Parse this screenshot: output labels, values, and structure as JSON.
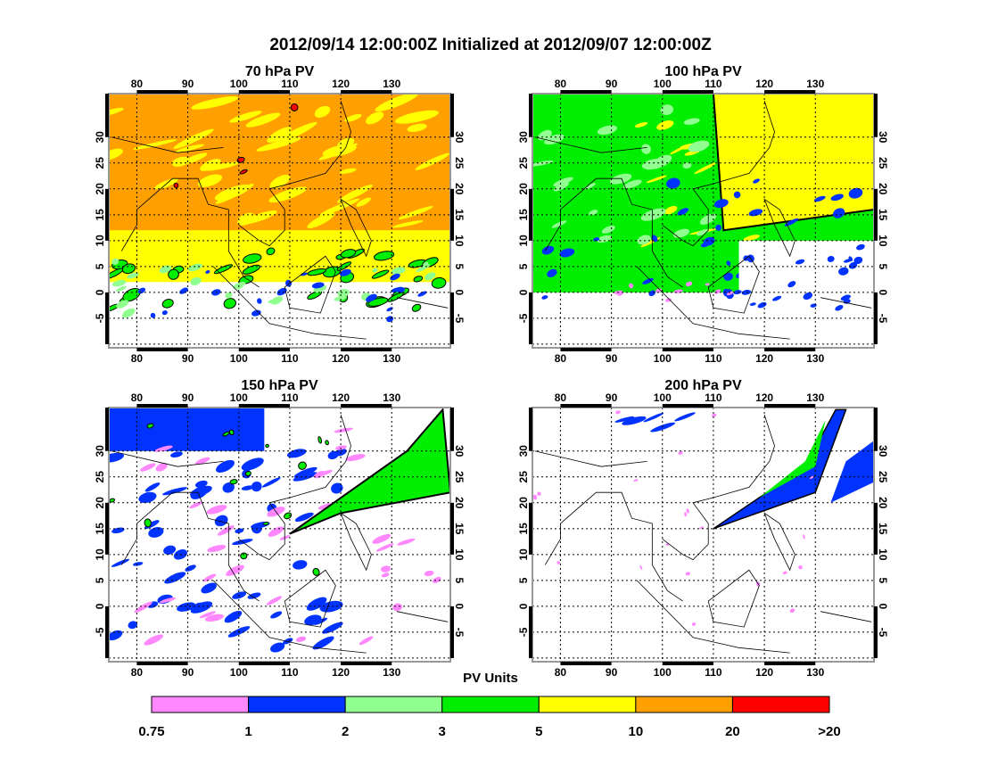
{
  "title": "2012/09/14 12:00:00Z Initialized at 2012/09/07 12:00:00Z",
  "chart_data": {
    "type": "heatmap",
    "panels": [
      {
        "title": "70 hPa PV",
        "dominant": [
          "orange",
          "yellow"
        ]
      },
      {
        "title": "100 hPa PV",
        "dominant": [
          "green",
          "yellow"
        ]
      },
      {
        "title": "150 hPa PV",
        "dominant": [
          "blue",
          "white"
        ]
      },
      {
        "title": "200 hPa PV",
        "dominant": [
          "white",
          "blue"
        ]
      }
    ],
    "lon_ticks": [
      "80",
      "90",
      "100",
      "110",
      "120",
      "130"
    ],
    "lon_values": [
      80,
      90,
      100,
      110,
      120,
      130
    ],
    "lat_ticks": [
      "30",
      "25",
      "20",
      "15",
      "10",
      "5",
      "0",
      "-5"
    ],
    "lat_values": [
      30,
      25,
      20,
      15,
      10,
      5,
      0,
      -5
    ],
    "lon_range": [
      74.5,
      141.5
    ],
    "lat_range": [
      -10.7,
      38.4
    ],
    "colorbar": {
      "title": "PV Units",
      "labels": [
        "0.75",
        "1",
        "2",
        "3",
        "5",
        "10",
        "20",
        ">20"
      ],
      "colors": [
        "#ff88ff",
        "#0033ff",
        "#90ff90",
        "#00ee00",
        "#ffff00",
        "#ffa000",
        "#ff0000"
      ]
    }
  }
}
